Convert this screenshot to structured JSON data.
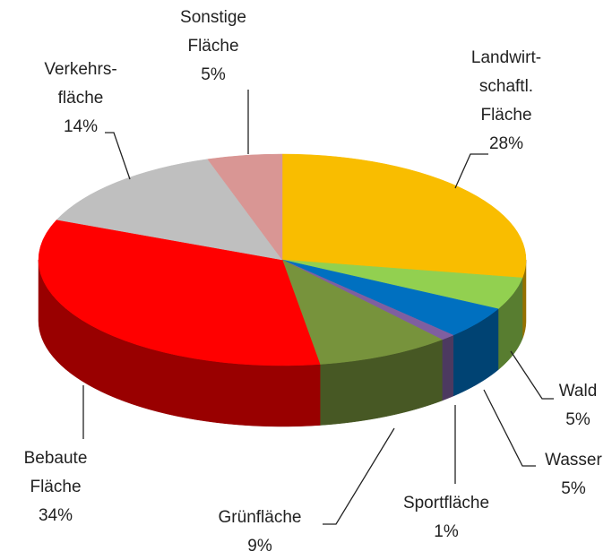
{
  "chart_data": {
    "type": "pie3d",
    "categories": [
      [
        "Landwirt-",
        "schaftl.",
        "Fläche"
      ],
      [
        "Wald"
      ],
      [
        "Wasser"
      ],
      [
        "Sportfläche"
      ],
      [
        "Grünfläche"
      ],
      [
        "Bebaute",
        "Fläche"
      ],
      [
        "Verkehrs-",
        "fläche"
      ],
      [
        "Sonstige",
        "Fläche"
      ]
    ],
    "values": [
      28,
      5,
      5,
      1,
      9,
      34,
      14,
      5
    ],
    "value_labels": [
      "28%",
      "5%",
      "5%",
      "1%",
      "9%",
      "34%",
      "14%",
      "5%"
    ],
    "colors": [
      "#f9bd00",
      "#92d050",
      "#0070c0",
      "#7f5fa0",
      "#77933c",
      "#ff0000",
      "#bfbfbf",
      "#d99694"
    ]
  }
}
